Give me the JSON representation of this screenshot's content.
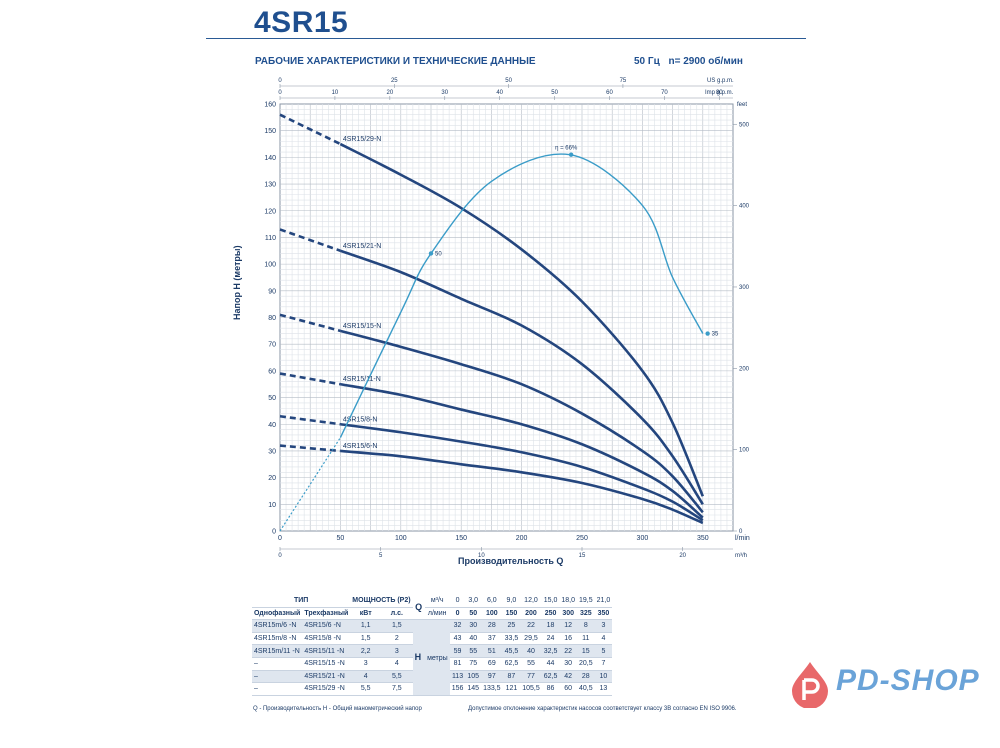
{
  "header": {
    "title": "4SR15",
    "subtitle": "РАБОЧИЕ ХАРАКТЕРИСТИКИ И ТЕХНИЧЕСКИЕ ДАННЫЕ",
    "freq": "50 Гц",
    "speed": "n= 2900 об/мин"
  },
  "colors": {
    "curve": "#24467e",
    "efficiency": "#3a9cc8",
    "grid": "#c9cfd6",
    "accent": "#1f4f8f",
    "logo": "#6aa3d8"
  },
  "chart_data": {
    "type": "line",
    "ylabel": "Напор H (метры)",
    "xlabel": "Производительность Q",
    "x_unit": "l/min",
    "x_unit_m3h": "m³/h",
    "y_unit_right": "feet",
    "top_unit_us": "US g.p.m.",
    "top_unit_imp": "Imp g.p.m.",
    "xlim": [
      0,
      375
    ],
    "ylim": [
      0,
      160
    ],
    "x_ticks": [
      "0",
      "50",
      "100",
      "150",
      "200",
      "250",
      "300",
      "350"
    ],
    "y_ticks": [
      "0",
      "10",
      "20",
      "30",
      "40",
      "50",
      "60",
      "70",
      "80",
      "90",
      "100",
      "110",
      "120",
      "130",
      "140",
      "150",
      "160"
    ],
    "m3h_ticks": [
      "0",
      "5",
      "10",
      "15",
      "20"
    ],
    "feet_ticks": [
      "0",
      "100",
      "200",
      "300",
      "400",
      "500"
    ],
    "usgpm_ticks": [
      "0",
      "25",
      "50",
      "75",
      "100"
    ],
    "impgpm_ticks": [
      "0",
      "10",
      "20",
      "30",
      "40",
      "50",
      "60",
      "70",
      "80"
    ],
    "grid": true,
    "series": [
      {
        "name": "4SR15/29-N",
        "x": [
          0,
          50,
          100,
          150,
          200,
          250,
          300,
          325,
          350
        ],
        "y": [
          156,
          145,
          133.5,
          121,
          105.5,
          86,
          60,
          40.5,
          13
        ]
      },
      {
        "name": "4SR15/21-N",
        "x": [
          0,
          50,
          100,
          150,
          200,
          250,
          300,
          325,
          350
        ],
        "y": [
          113,
          105,
          97,
          87,
          77,
          62.5,
          42,
          28,
          10
        ]
      },
      {
        "name": "4SR15/15-N",
        "x": [
          0,
          50,
          100,
          150,
          200,
          250,
          300,
          325,
          350
        ],
        "y": [
          81,
          75,
          69,
          62.5,
          55,
          44,
          30,
          20.5,
          7
        ]
      },
      {
        "name": "4SR15/11-N",
        "x": [
          0,
          50,
          100,
          150,
          200,
          250,
          300,
          325,
          350
        ],
        "y": [
          59,
          55,
          51,
          45.5,
          40,
          32.5,
          22,
          15,
          5
        ]
      },
      {
        "name": "4SR15/8-N",
        "x": [
          0,
          50,
          100,
          150,
          200,
          250,
          300,
          325,
          350
        ],
        "y": [
          43,
          40,
          37,
          33.5,
          29.5,
          24,
          16,
          11,
          4
        ]
      },
      {
        "name": "4SR15/6-N",
        "x": [
          0,
          50,
          100,
          150,
          200,
          250,
          300,
          325,
          350
        ],
        "y": [
          32,
          30,
          28,
          25,
          22,
          18,
          12,
          8,
          3
        ]
      }
    ],
    "efficiency": {
      "label": "η = 66%",
      "x": [
        0,
        50,
        100,
        125,
        175,
        240,
        300,
        325,
        350
      ],
      "y": [
        0,
        35,
        82,
        104,
        131,
        141,
        122,
        95,
        74
      ],
      "points": [
        {
          "x": 125,
          "y": 104,
          "label": "50"
        },
        {
          "x": 241,
          "y": 141,
          "label": "η = 66%"
        },
        {
          "x": 354,
          "y": 74,
          "label": "35"
        }
      ]
    }
  },
  "table": {
    "h_type": "ТИП",
    "h_power": "МОЩНОСТЬ (P2)",
    "h_single": "Однофазный",
    "h_three": "Трехфазный",
    "h_kw": "кВт",
    "h_hp": "л.с.",
    "q_symbol": "Q",
    "q_unit1": "м³/ч",
    "q_unit2": "л/мин",
    "h_symbol": "H",
    "h_unit": "метры",
    "q_m3h": [
      "0",
      "3,0",
      "6,0",
      "9,0",
      "12,0",
      "15,0",
      "18,0",
      "19,5",
      "21,0"
    ],
    "q_lmin": [
      "0",
      "50",
      "100",
      "150",
      "200",
      "250",
      "300",
      "325",
      "350"
    ],
    "rows": [
      {
        "single": "4SR15m/6 -N",
        "three": "4SR15/6 -N",
        "kw": "1,1",
        "hp": "1,5",
        "h": [
          "32",
          "30",
          "28",
          "25",
          "22",
          "18",
          "12",
          "8",
          "3"
        ]
      },
      {
        "single": "4SR15m/8 -N",
        "three": "4SR15/8 -N",
        "kw": "1,5",
        "hp": "2",
        "h": [
          "43",
          "40",
          "37",
          "33,5",
          "29,5",
          "24",
          "16",
          "11",
          "4"
        ]
      },
      {
        "single": "4SR15m/11 -N",
        "three": "4SR15/11 -N",
        "kw": "2,2",
        "hp": "3",
        "h": [
          "59",
          "55",
          "51",
          "45,5",
          "40",
          "32,5",
          "22",
          "15",
          "5"
        ]
      },
      {
        "single": "–",
        "three": "4SR15/15 -N",
        "kw": "3",
        "hp": "4",
        "h": [
          "81",
          "75",
          "69",
          "62,5",
          "55",
          "44",
          "30",
          "20,5",
          "7"
        ]
      },
      {
        "single": "–",
        "three": "4SR15/21 -N",
        "kw": "4",
        "hp": "5,5",
        "h": [
          "113",
          "105",
          "97",
          "87",
          "77",
          "62,5",
          "42",
          "28",
          "10"
        ]
      },
      {
        "single": "–",
        "three": "4SR15/29 -N",
        "kw": "5,5",
        "hp": "7,5",
        "h": [
          "156",
          "145",
          "133,5",
          "121",
          "105,5",
          "86",
          "60",
          "40,5",
          "13"
        ]
      }
    ]
  },
  "footer": {
    "left": "Q - Производительность   H - Общий манометрический напор",
    "right": "Допустимое отклонение характеристик насосов соответствует классу 3B согласно EN ISO 9906."
  },
  "logo": {
    "text": "PD-SHOP"
  }
}
